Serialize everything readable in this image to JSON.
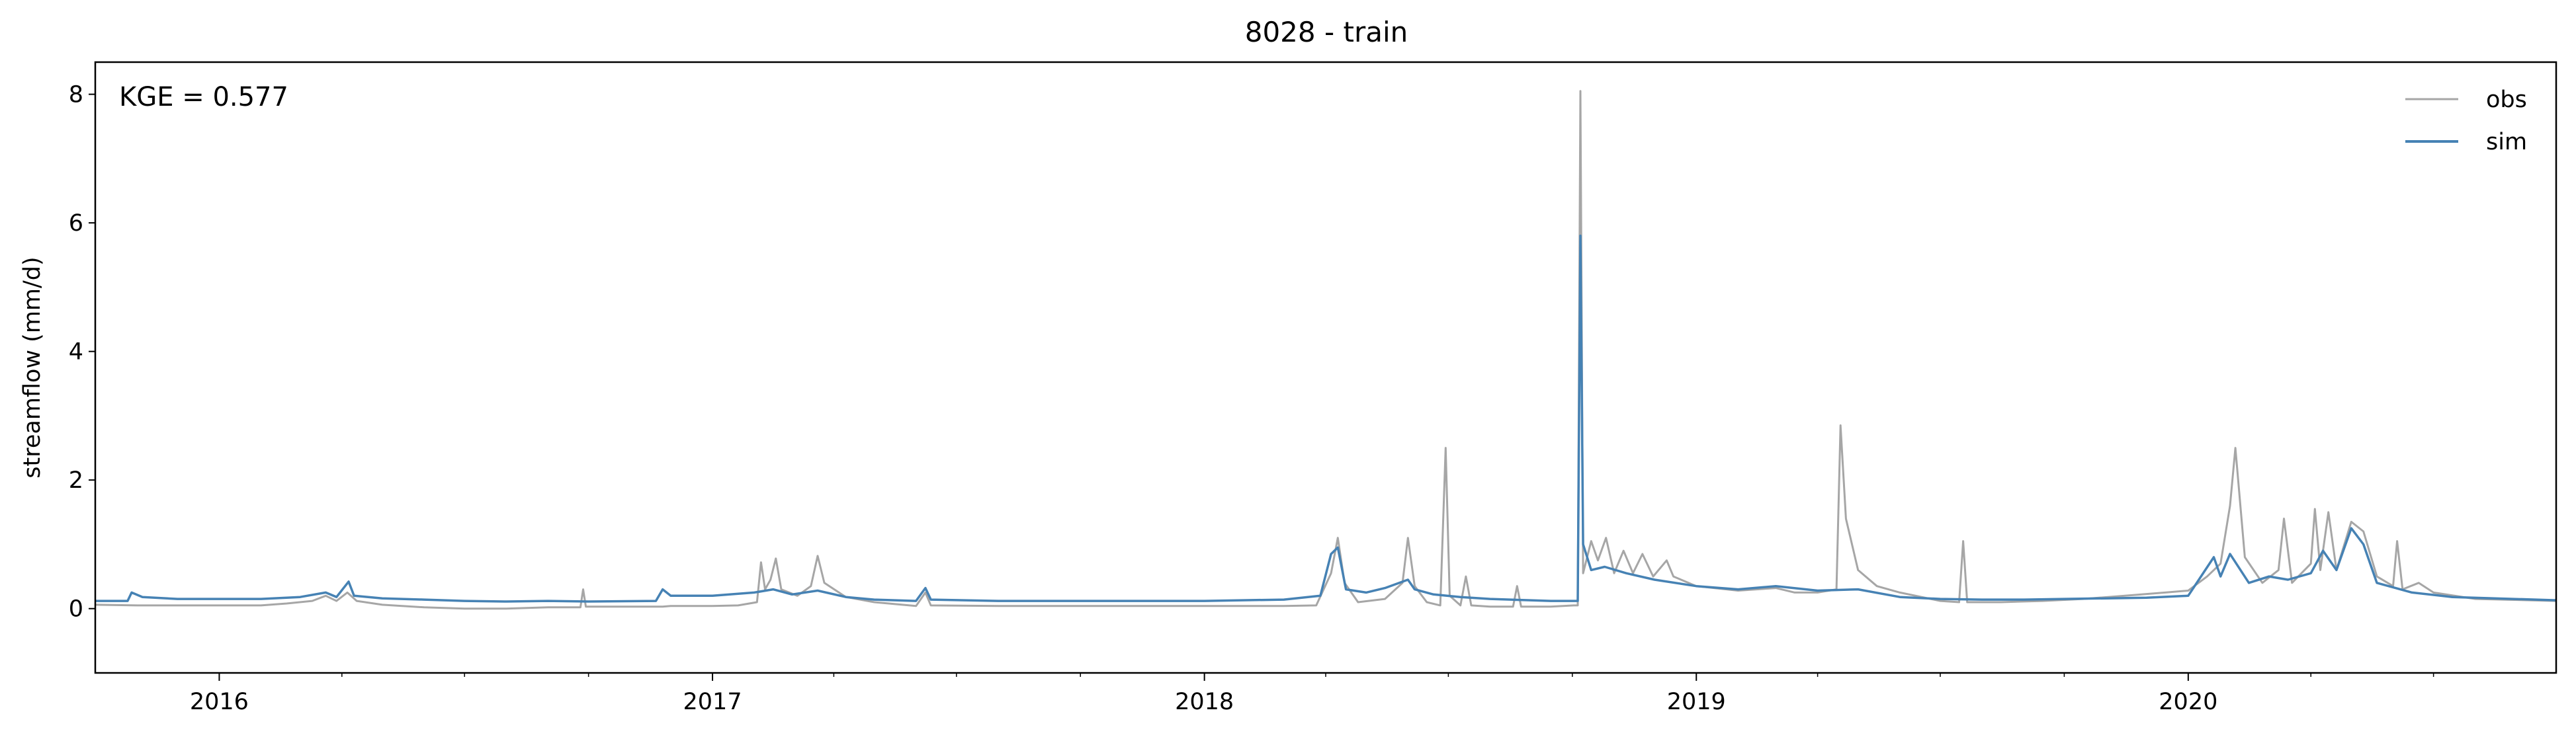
{
  "chart_data": {
    "type": "line",
    "title": "8028 - train",
    "xlabel": "",
    "ylabel": "streamflow (mm/d)",
    "annotation": "KGE = 0.577",
    "xlim": [
      "2015-10-01",
      "2020-09-30"
    ],
    "ylim": [
      -1.0,
      8.5
    ],
    "yticks": [
      0,
      2,
      4,
      6,
      8
    ],
    "ytick_labels": [
      "0",
      "2",
      "4",
      "6",
      "8"
    ],
    "xticks": [
      "2016-01-01",
      "2017-01-01",
      "2018-01-01",
      "2019-01-01",
      "2020-01-01"
    ],
    "xtick_labels": [
      "2016",
      "2017",
      "2018",
      "2019",
      "2020"
    ],
    "x_minor_ticks": [
      "2016-04-01",
      "2016-07-01",
      "2016-10-01",
      "2017-04-01",
      "2017-07-01",
      "2017-10-01",
      "2018-04-01",
      "2018-07-01",
      "2018-10-01",
      "2019-04-01",
      "2019-07-01",
      "2019-10-01",
      "2020-04-01",
      "2020-07-01"
    ],
    "legend": {
      "position": "top-right",
      "entries": [
        "obs",
        "sim"
      ]
    },
    "grid": false,
    "series": [
      {
        "name": "obs",
        "color": "#a6a6a6",
        "points": [
          [
            "2015-10-01",
            0.06
          ],
          [
            "2015-11-01",
            0.05
          ],
          [
            "2015-12-01",
            0.05
          ],
          [
            "2016-01-01",
            0.05
          ],
          [
            "2016-02-01",
            0.05
          ],
          [
            "2016-02-20",
            0.08
          ],
          [
            "2016-03-10",
            0.12
          ],
          [
            "2016-03-20",
            0.2
          ],
          [
            "2016-03-28",
            0.12
          ],
          [
            "2016-04-05",
            0.25
          ],
          [
            "2016-04-12",
            0.12
          ],
          [
            "2016-05-01",
            0.06
          ],
          [
            "2016-06-01",
            0.02
          ],
          [
            "2016-07-01",
            0.0
          ],
          [
            "2016-08-01",
            0.0
          ],
          [
            "2016-09-01",
            0.02
          ],
          [
            "2016-09-25",
            0.02
          ],
          [
            "2016-09-27",
            0.3
          ],
          [
            "2016-09-29",
            0.03
          ],
          [
            "2016-11-01",
            0.03
          ],
          [
            "2016-11-25",
            0.03
          ],
          [
            "2016-12-01",
            0.04
          ],
          [
            "2017-01-01",
            0.04
          ],
          [
            "2017-01-20",
            0.05
          ],
          [
            "2017-02-03",
            0.1
          ],
          [
            "2017-02-06",
            0.72
          ],
          [
            "2017-02-09",
            0.3
          ],
          [
            "2017-02-13",
            0.45
          ],
          [
            "2017-02-17",
            0.78
          ],
          [
            "2017-02-21",
            0.3
          ],
          [
            "2017-03-05",
            0.2
          ],
          [
            "2017-03-15",
            0.35
          ],
          [
            "2017-03-20",
            0.82
          ],
          [
            "2017-03-25",
            0.4
          ],
          [
            "2017-04-10",
            0.18
          ],
          [
            "2017-05-01",
            0.1
          ],
          [
            "2017-06-01",
            0.04
          ],
          [
            "2017-06-08",
            0.25
          ],
          [
            "2017-06-12",
            0.05
          ],
          [
            "2017-08-01",
            0.04
          ],
          [
            "2017-10-01",
            0.04
          ],
          [
            "2018-01-01",
            0.04
          ],
          [
            "2018-02-01",
            0.04
          ],
          [
            "2018-03-01",
            0.04
          ],
          [
            "2018-03-25",
            0.05
          ],
          [
            "2018-04-05",
            0.55
          ],
          [
            "2018-04-10",
            1.1
          ],
          [
            "2018-04-15",
            0.4
          ],
          [
            "2018-04-25",
            0.1
          ],
          [
            "2018-05-15",
            0.15
          ],
          [
            "2018-05-28",
            0.4
          ],
          [
            "2018-06-01",
            1.1
          ],
          [
            "2018-06-06",
            0.35
          ],
          [
            "2018-06-15",
            0.1
          ],
          [
            "2018-06-25",
            0.05
          ],
          [
            "2018-06-29",
            2.5
          ],
          [
            "2018-07-02",
            0.2
          ],
          [
            "2018-07-10",
            0.05
          ],
          [
            "2018-07-14",
            0.5
          ],
          [
            "2018-07-18",
            0.05
          ],
          [
            "2018-08-01",
            0.03
          ],
          [
            "2018-08-18",
            0.03
          ],
          [
            "2018-08-21",
            0.35
          ],
          [
            "2018-08-24",
            0.03
          ],
          [
            "2018-09-15",
            0.03
          ],
          [
            "2018-10-02",
            0.05
          ],
          [
            "2018-10-05",
            0.05
          ],
          [
            "2018-10-07",
            8.05
          ],
          [
            "2018-10-09",
            0.55
          ],
          [
            "2018-10-15",
            1.05
          ],
          [
            "2018-10-20",
            0.75
          ],
          [
            "2018-10-26",
            1.1
          ],
          [
            "2018-11-01",
            0.55
          ],
          [
            "2018-11-08",
            0.9
          ],
          [
            "2018-11-15",
            0.55
          ],
          [
            "2018-11-22",
            0.85
          ],
          [
            "2018-11-30",
            0.5
          ],
          [
            "2018-12-10",
            0.75
          ],
          [
            "2018-12-15",
            0.5
          ],
          [
            "2019-01-01",
            0.35
          ],
          [
            "2019-02-01",
            0.28
          ],
          [
            "2019-03-01",
            0.32
          ],
          [
            "2019-03-15",
            0.25
          ],
          [
            "2019-04-01",
            0.25
          ],
          [
            "2019-04-15",
            0.3
          ],
          [
            "2019-04-18",
            2.85
          ],
          [
            "2019-04-22",
            1.4
          ],
          [
            "2019-05-01",
            0.6
          ],
          [
            "2019-05-15",
            0.35
          ],
          [
            "2019-06-01",
            0.25
          ],
          [
            "2019-07-01",
            0.12
          ],
          [
            "2019-07-15",
            0.1
          ],
          [
            "2019-07-18",
            1.05
          ],
          [
            "2019-07-21",
            0.1
          ],
          [
            "2019-08-15",
            0.1
          ],
          [
            "2019-09-15",
            0.12
          ],
          [
            "2019-10-15",
            0.15
          ],
          [
            "2019-11-15",
            0.2
          ],
          [
            "2019-12-15",
            0.25
          ],
          [
            "2020-01-01",
            0.28
          ],
          [
            "2020-01-15",
            0.5
          ],
          [
            "2020-01-25",
            0.7
          ],
          [
            "2020-02-01",
            1.6
          ],
          [
            "2020-02-05",
            2.5
          ],
          [
            "2020-02-12",
            0.8
          ],
          [
            "2020-02-25",
            0.4
          ],
          [
            "2020-03-08",
            0.6
          ],
          [
            "2020-03-12",
            1.4
          ],
          [
            "2020-03-18",
            0.4
          ],
          [
            "2020-04-01",
            0.7
          ],
          [
            "2020-04-04",
            1.55
          ],
          [
            "2020-04-08",
            0.6
          ],
          [
            "2020-04-14",
            1.5
          ],
          [
            "2020-04-20",
            0.6
          ],
          [
            "2020-05-01",
            1.35
          ],
          [
            "2020-05-10",
            1.2
          ],
          [
            "2020-05-20",
            0.5
          ],
          [
            "2020-06-01",
            0.35
          ],
          [
            "2020-06-04",
            1.05
          ],
          [
            "2020-06-08",
            0.3
          ],
          [
            "2020-06-20",
            0.4
          ],
          [
            "2020-07-01",
            0.25
          ],
          [
            "2020-08-01",
            0.15
          ],
          [
            "2020-09-30",
            0.12
          ]
        ]
      },
      {
        "name": "sim",
        "color": "#4682b4",
        "points": [
          [
            "2015-10-01",
            0.12
          ],
          [
            "2015-10-25",
            0.12
          ],
          [
            "2015-10-28",
            0.25
          ],
          [
            "2015-11-05",
            0.18
          ],
          [
            "2015-12-01",
            0.15
          ],
          [
            "2016-01-01",
            0.15
          ],
          [
            "2016-02-01",
            0.15
          ],
          [
            "2016-03-01",
            0.18
          ],
          [
            "2016-03-20",
            0.25
          ],
          [
            "2016-03-28",
            0.18
          ],
          [
            "2016-04-06",
            0.42
          ],
          [
            "2016-04-10",
            0.2
          ],
          [
            "2016-05-01",
            0.16
          ],
          [
            "2016-06-01",
            0.14
          ],
          [
            "2016-07-01",
            0.12
          ],
          [
            "2016-08-01",
            0.11
          ],
          [
            "2016-09-01",
            0.12
          ],
          [
            "2016-10-01",
            0.11
          ],
          [
            "2016-11-20",
            0.12
          ],
          [
            "2016-11-25",
            0.3
          ],
          [
            "2016-12-01",
            0.2
          ],
          [
            "2017-01-01",
            0.2
          ],
          [
            "2017-02-01",
            0.25
          ],
          [
            "2017-02-15",
            0.3
          ],
          [
            "2017-03-01",
            0.22
          ],
          [
            "2017-03-20",
            0.28
          ],
          [
            "2017-04-10",
            0.18
          ],
          [
            "2017-05-01",
            0.14
          ],
          [
            "2017-06-01",
            0.12
          ],
          [
            "2017-06-08",
            0.32
          ],
          [
            "2017-06-12",
            0.14
          ],
          [
            "2017-08-01",
            0.12
          ],
          [
            "2017-10-01",
            0.12
          ],
          [
            "2018-01-01",
            0.12
          ],
          [
            "2018-03-01",
            0.14
          ],
          [
            "2018-03-28",
            0.2
          ],
          [
            "2018-04-05",
            0.85
          ],
          [
            "2018-04-10",
            0.95
          ],
          [
            "2018-04-16",
            0.3
          ],
          [
            "2018-05-01",
            0.25
          ],
          [
            "2018-05-15",
            0.32
          ],
          [
            "2018-06-01",
            0.45
          ],
          [
            "2018-06-06",
            0.3
          ],
          [
            "2018-06-20",
            0.22
          ],
          [
            "2018-07-10",
            0.18
          ],
          [
            "2018-08-01",
            0.15
          ],
          [
            "2018-09-15",
            0.12
          ],
          [
            "2018-10-05",
            0.12
          ],
          [
            "2018-10-07",
            5.8
          ],
          [
            "2018-10-09",
            1.0
          ],
          [
            "2018-10-15",
            0.6
          ],
          [
            "2018-10-25",
            0.65
          ],
          [
            "2018-11-10",
            0.55
          ],
          [
            "2018-12-01",
            0.45
          ],
          [
            "2019-01-01",
            0.35
          ],
          [
            "2019-02-01",
            0.3
          ],
          [
            "2019-03-01",
            0.35
          ],
          [
            "2019-04-01",
            0.28
          ],
          [
            "2019-05-01",
            0.3
          ],
          [
            "2019-06-01",
            0.18
          ],
          [
            "2019-07-01",
            0.15
          ],
          [
            "2019-08-01",
            0.14
          ],
          [
            "2019-09-01",
            0.14
          ],
          [
            "2019-10-01",
            0.15
          ],
          [
            "2019-11-01",
            0.16
          ],
          [
            "2019-12-01",
            0.17
          ],
          [
            "2020-01-01",
            0.2
          ],
          [
            "2020-01-20",
            0.8
          ],
          [
            "2020-01-25",
            0.5
          ],
          [
            "2020-02-01",
            0.85
          ],
          [
            "2020-02-15",
            0.4
          ],
          [
            "2020-03-01",
            0.5
          ],
          [
            "2020-03-15",
            0.45
          ],
          [
            "2020-04-01",
            0.55
          ],
          [
            "2020-04-10",
            0.9
          ],
          [
            "2020-04-20",
            0.6
          ],
          [
            "2020-05-01",
            1.25
          ],
          [
            "2020-05-10",
            1.0
          ],
          [
            "2020-05-20",
            0.4
          ],
          [
            "2020-06-15",
            0.25
          ],
          [
            "2020-07-15",
            0.18
          ],
          [
            "2020-09-30",
            0.13
          ]
        ]
      }
    ]
  }
}
